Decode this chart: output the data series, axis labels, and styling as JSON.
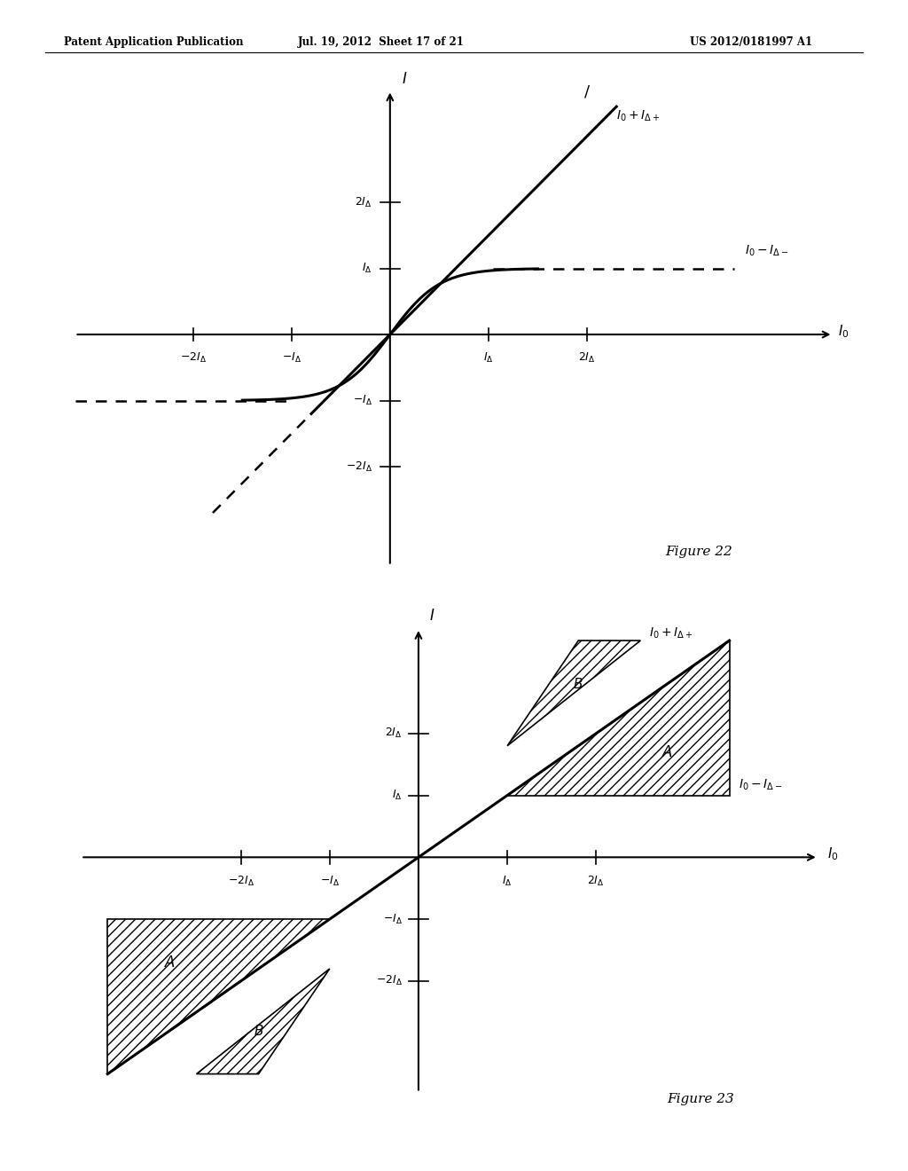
{
  "header_left": "Patent Application Publication",
  "header_mid": "Jul. 19, 2012  Sheet 17 of 21",
  "header_right": "US 2012/0181997 A1",
  "fig22_caption": "Figure 22",
  "fig23_caption": "Figure 23",
  "background_color": "#ffffff"
}
